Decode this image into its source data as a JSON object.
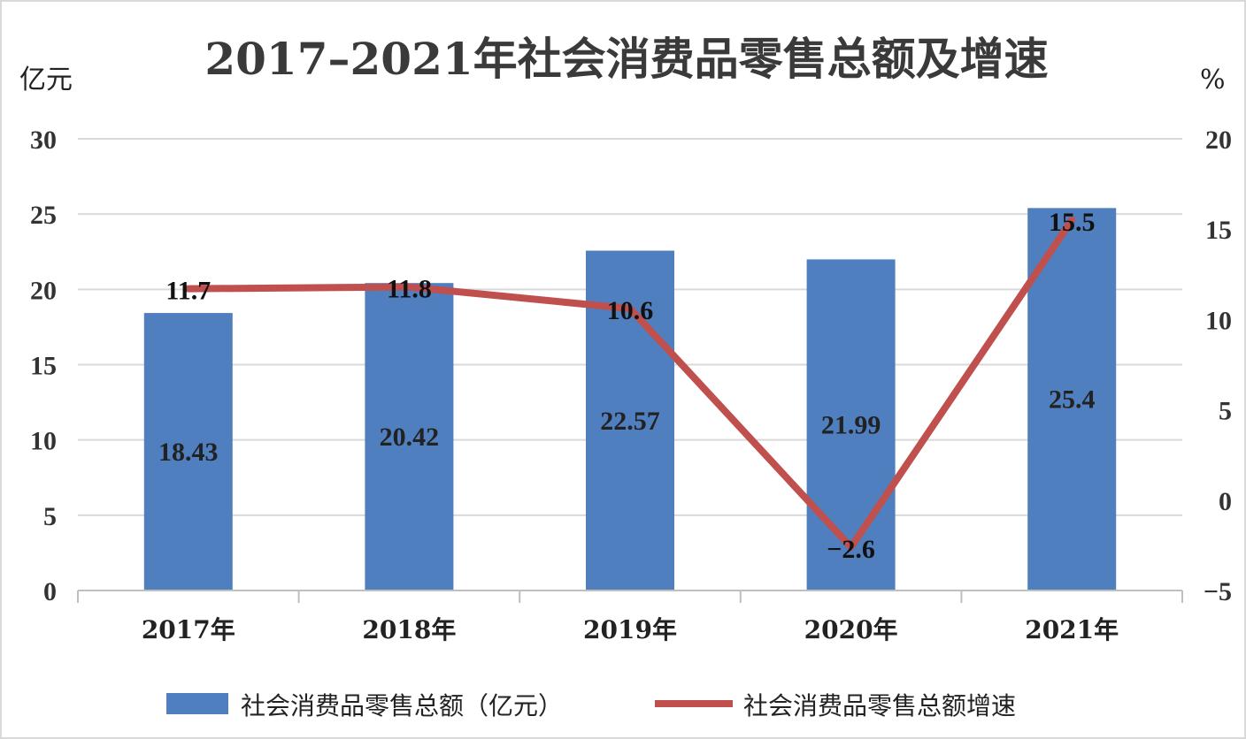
{
  "chart_data": {
    "type": "bar",
    "title": "2017–2021年社会消费品零售总额及增速",
    "categories": [
      "2017年",
      "2018年",
      "2019年",
      "2020年",
      "2021年"
    ],
    "y_left": {
      "unit": "亿元",
      "lim": [
        0,
        30
      ],
      "ticks": [
        "0",
        "5",
        "10",
        "15",
        "20",
        "25",
        "30"
      ]
    },
    "y_right": {
      "unit": "%",
      "lim": [
        -5,
        20
      ],
      "ticks": [
        "−5",
        "0",
        "5",
        "10",
        "15",
        "20"
      ]
    },
    "series": [
      {
        "name": "社会消费品零售总额（亿元）",
        "type": "bar",
        "axis": "left",
        "color": "#4f7fbf",
        "values": [
          18.43,
          20.42,
          22.57,
          21.99,
          25.4
        ],
        "labels": [
          "18.43",
          "20.42",
          "22.57",
          "21.99",
          "25.4"
        ]
      },
      {
        "name": "社会消费品零售总额增速",
        "type": "line",
        "axis": "right",
        "color": "#c0504d",
        "values": [
          11.7,
          11.8,
          10.6,
          -2.6,
          15.5
        ],
        "labels": [
          "11.7",
          "11.8",
          "10.6",
          "−2.6",
          "15.5"
        ]
      }
    ],
    "grid": true,
    "legend_position": "bottom"
  }
}
